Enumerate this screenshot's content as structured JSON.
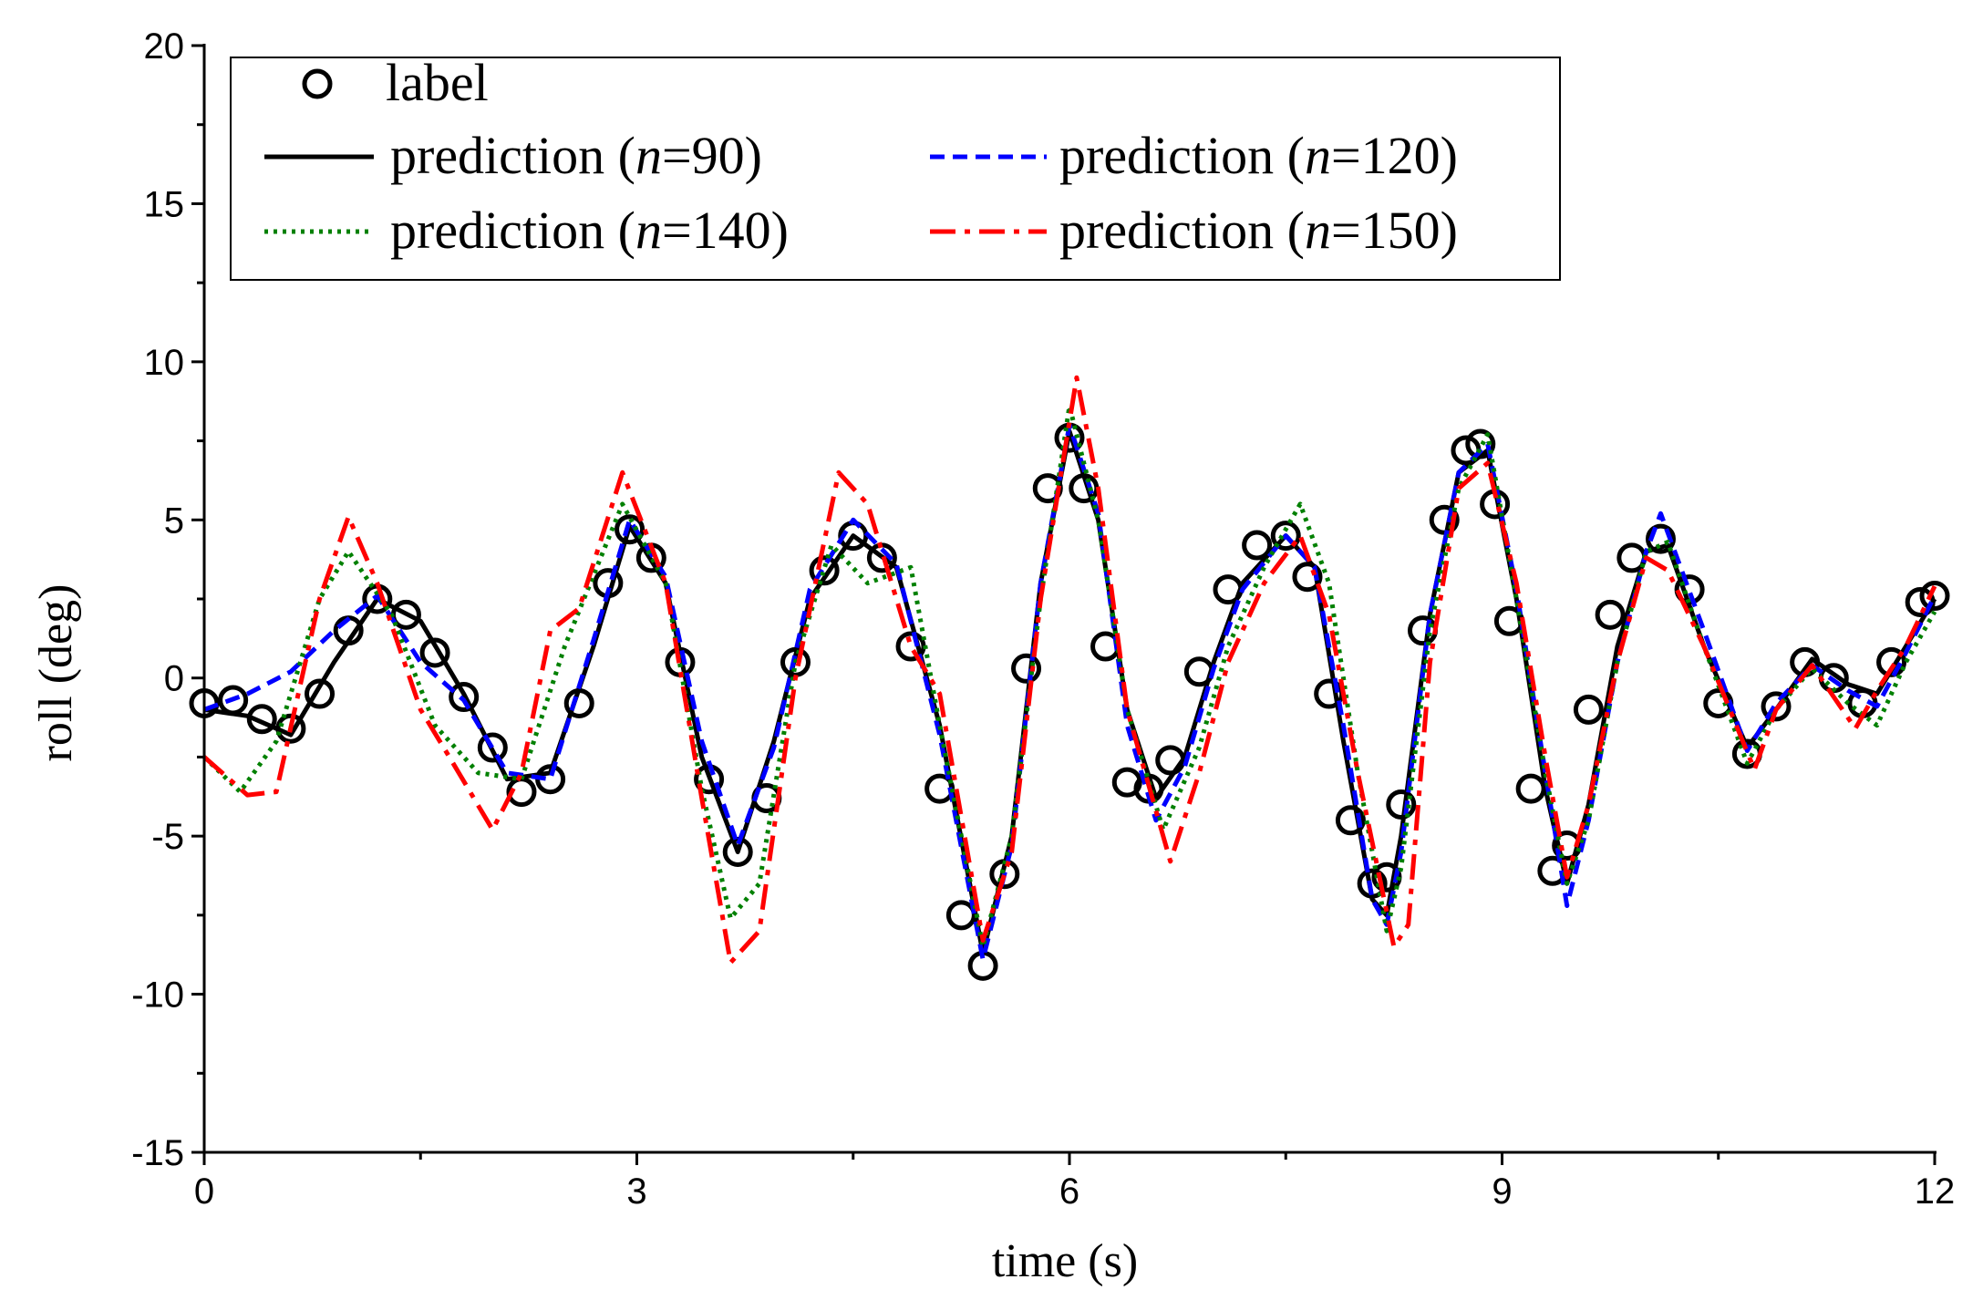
{
  "chart_data": {
    "type": "line",
    "title": "",
    "xlabel": "time (s)",
    "ylabel": "roll (deg)",
    "xlim": [
      0,
      12
    ],
    "ylim": [
      -15,
      20
    ],
    "xticks": [
      0,
      3,
      6,
      9,
      12
    ],
    "yticks": [
      -15,
      -10,
      -5,
      0,
      5,
      10,
      15,
      20
    ],
    "grid": false,
    "legend_position": "top-left",
    "series": [
      {
        "name": "label",
        "style": "circles",
        "color": "#000000",
        "x": [
          0,
          0.2,
          0.4,
          0.6,
          0.8,
          1.0,
          1.2,
          1.4,
          1.6,
          1.8,
          2.0,
          2.2,
          2.4,
          2.6,
          2.8,
          2.95,
          3.1,
          3.3,
          3.5,
          3.7,
          3.9,
          4.1,
          4.3,
          4.5,
          4.7,
          4.9,
          5.1,
          5.25,
          5.4,
          5.55,
          5.7,
          5.85,
          6.0,
          6.1,
          6.25,
          6.4,
          6.55,
          6.7,
          6.9,
          7.1,
          7.3,
          7.5,
          7.65,
          7.8,
          7.95,
          8.1,
          8.2,
          8.3,
          8.45,
          8.6,
          8.75,
          8.85,
          8.95,
          9.05,
          9.2,
          9.35,
          9.45,
          9.6,
          9.75,
          9.9,
          10.1,
          10.3,
          10.5,
          10.7,
          10.9,
          11.1,
          11.3,
          11.5,
          11.7,
          11.9,
          12
        ],
        "values": [
          -0.8,
          -0.7,
          -1.3,
          -1.6,
          -0.5,
          1.5,
          2.5,
          2.0,
          0.8,
          -0.6,
          -2.2,
          -3.6,
          -3.2,
          -0.8,
          3.0,
          4.7,
          3.8,
          0.5,
          -3.2,
          -5.5,
          -3.8,
          0.5,
          3.4,
          4.5,
          3.8,
          1.0,
          -3.5,
          -7.5,
          -9.1,
          -6.2,
          0.3,
          6.0,
          7.6,
          6.0,
          1.0,
          -3.3,
          -3.5,
          -2.6,
          0.2,
          2.8,
          4.2,
          4.5,
          3.2,
          -0.5,
          -4.5,
          -6.5,
          -6.3,
          -4.0,
          1.5,
          5.0,
          7.2,
          7.4,
          5.5,
          1.8,
          -3.5,
          -6.1,
          -5.3,
          -1.0,
          2.0,
          3.8,
          4.4,
          2.8,
          -0.8,
          -2.4,
          -0.9,
          0.5,
          0.0,
          -0.8,
          0.5,
          2.4,
          2.6
        ]
      },
      {
        "name": "prediction (n=90)",
        "style": "solid",
        "color": "#000000",
        "x": [
          0,
          0.3,
          0.6,
          0.9,
          1.2,
          1.5,
          1.8,
          2.1,
          2.4,
          2.7,
          2.95,
          3.2,
          3.45,
          3.7,
          3.95,
          4.2,
          4.5,
          4.8,
          5.1,
          5.4,
          5.6,
          5.8,
          6.0,
          6.2,
          6.4,
          6.6,
          6.8,
          7.0,
          7.2,
          7.5,
          7.7,
          7.9,
          8.1,
          8.2,
          8.3,
          8.5,
          8.7,
          8.9,
          9.1,
          9.3,
          9.45,
          9.6,
          9.8,
          10.0,
          10.15,
          10.4,
          10.7,
          10.9,
          11.15,
          11.4,
          11.6,
          11.8,
          12
        ],
        "values": [
          -1.0,
          -1.2,
          -1.8,
          0.5,
          2.5,
          1.8,
          -0.5,
          -3.2,
          -3.0,
          1.0,
          4.8,
          3.0,
          -2.5,
          -5.5,
          -2.0,
          2.5,
          4.5,
          3.5,
          -1.5,
          -8.7,
          -5.0,
          3.0,
          7.8,
          5.0,
          -1.0,
          -3.8,
          -2.5,
          0.5,
          3.0,
          4.5,
          3.5,
          -2.0,
          -7.0,
          -7.5,
          -5.0,
          2.0,
          6.5,
          7.2,
          2.5,
          -3.5,
          -6.5,
          -4.0,
          1.0,
          4.0,
          4.2,
          1.0,
          -2.2,
          -1.0,
          0.6,
          -0.2,
          -0.5,
          1.0,
          2.5
        ]
      },
      {
        "name": "prediction (n=120)",
        "style": "dashed",
        "color": "#0000ff",
        "x": [
          0,
          0.3,
          0.6,
          0.9,
          1.2,
          1.5,
          1.8,
          2.1,
          2.4,
          2.7,
          2.95,
          3.2,
          3.45,
          3.7,
          3.95,
          4.2,
          4.5,
          4.8,
          5.1,
          5.4,
          5.6,
          5.8,
          6.0,
          6.2,
          6.4,
          6.6,
          6.8,
          7.0,
          7.2,
          7.5,
          7.7,
          7.9,
          8.1,
          8.2,
          8.3,
          8.5,
          8.7,
          8.9,
          9.1,
          9.3,
          9.45,
          9.6,
          9.8,
          10.0,
          10.1,
          10.4,
          10.7,
          10.9,
          11.15,
          11.4,
          11.6,
          11.8,
          12
        ],
        "values": [
          -1.0,
          -0.5,
          0.2,
          1.5,
          2.6,
          0.5,
          -0.7,
          -3.0,
          -3.2,
          1.2,
          5.0,
          3.2,
          -2.0,
          -5.3,
          -2.2,
          2.8,
          5.0,
          3.6,
          -1.8,
          -8.9,
          -5.3,
          3.0,
          8.0,
          5.2,
          -1.5,
          -4.5,
          -2.8,
          0.3,
          2.8,
          4.5,
          3.5,
          -1.5,
          -7.0,
          -7.8,
          -5.5,
          2.0,
          6.5,
          7.4,
          2.8,
          -3.0,
          -7.2,
          -4.5,
          0.5,
          4.0,
          5.2,
          1.5,
          -2.3,
          -0.8,
          0.4,
          -0.4,
          -0.9,
          0.8,
          2.6
        ]
      },
      {
        "name": "prediction (n=140)",
        "style": "dotted",
        "color": "#008000",
        "x": [
          0,
          0.25,
          0.5,
          0.8,
          1.0,
          1.3,
          1.6,
          1.9,
          2.2,
          2.5,
          2.9,
          3.2,
          3.45,
          3.65,
          3.85,
          4.1,
          4.35,
          4.6,
          4.9,
          5.1,
          5.4,
          5.6,
          5.8,
          6.0,
          6.2,
          6.4,
          6.65,
          6.9,
          7.1,
          7.35,
          7.6,
          7.8,
          8.0,
          8.2,
          8.3,
          8.5,
          8.7,
          8.9,
          9.1,
          9.3,
          9.45,
          9.6,
          9.8,
          10.0,
          10.15,
          10.4,
          10.7,
          10.9,
          11.15,
          11.4,
          11.6,
          11.8,
          12
        ],
        "values": [
          -2.5,
          -3.6,
          -2.0,
          2.5,
          4.0,
          2.0,
          -1.5,
          -3.0,
          -3.2,
          1.0,
          5.5,
          3.0,
          -3.5,
          -7.6,
          -6.5,
          0.5,
          4.2,
          3.0,
          3.5,
          -1.5,
          -8.5,
          -5.0,
          2.5,
          8.6,
          5.0,
          -1.0,
          -4.8,
          -2.2,
          1.0,
          3.5,
          5.5,
          3.0,
          -3.0,
          -8.0,
          -6.0,
          1.5,
          6.0,
          7.7,
          2.5,
          -3.0,
          -6.5,
          -4.5,
          0.5,
          4.0,
          4.3,
          1.0,
          -2.7,
          -1.0,
          0.3,
          -0.8,
          -1.5,
          0.5,
          2.1
        ]
      },
      {
        "name": "prediction (n=150)",
        "style": "dashdot",
        "color": "#ff0000",
        "x": [
          0,
          0.3,
          0.5,
          0.8,
          1.0,
          1.2,
          1.5,
          1.7,
          2.0,
          2.2,
          2.4,
          2.6,
          2.9,
          3.2,
          3.45,
          3.65,
          3.85,
          4.1,
          4.4,
          4.6,
          4.9,
          5.1,
          5.4,
          5.6,
          5.8,
          6.05,
          6.2,
          6.4,
          6.7,
          6.9,
          7.1,
          7.35,
          7.6,
          7.8,
          8.0,
          8.25,
          8.35,
          8.5,
          8.7,
          8.9,
          9.1,
          9.3,
          9.45,
          9.6,
          9.8,
          10.0,
          10.15,
          10.4,
          10.75,
          10.9,
          11.15,
          11.45,
          11.6,
          11.8,
          12
        ],
        "values": [
          -2.5,
          -3.7,
          -3.6,
          2.5,
          5.1,
          3.0,
          -1.0,
          -2.5,
          -4.8,
          -3.0,
          1.5,
          2.2,
          6.5,
          3.0,
          -3.8,
          -9.0,
          -8.0,
          0.0,
          6.5,
          5.5,
          1.0,
          -0.5,
          -8.3,
          -5.5,
          2.5,
          9.5,
          6.0,
          -1.0,
          -5.8,
          -3.0,
          0.5,
          3.0,
          4.5,
          2.0,
          -3.0,
          -8.5,
          -7.8,
          0.5,
          6.0,
          6.8,
          3.0,
          -2.5,
          -6.3,
          -4.0,
          0.5,
          3.8,
          3.4,
          1.0,
          -2.9,
          -1.0,
          0.4,
          -1.6,
          -0.4,
          1.0,
          2.9
        ]
      }
    ],
    "legend": {
      "items": [
        {
          "text": "label",
          "style": "circles",
          "color": "#000000"
        },
        {
          "pre": "prediction (",
          "n": "n",
          "post": "=90)",
          "style": "solid",
          "color": "#000000"
        },
        {
          "pre": "prediction (",
          "n": "n",
          "post": "=120)",
          "style": "dashed",
          "color": "#0000ff"
        },
        {
          "pre": "prediction (",
          "n": "n",
          "post": "=140)",
          "style": "dotted",
          "color": "#008000"
        },
        {
          "pre": "prediction (",
          "n": "n",
          "post": "=150)",
          "style": "dashdot",
          "color": "#ff0000"
        }
      ]
    }
  }
}
